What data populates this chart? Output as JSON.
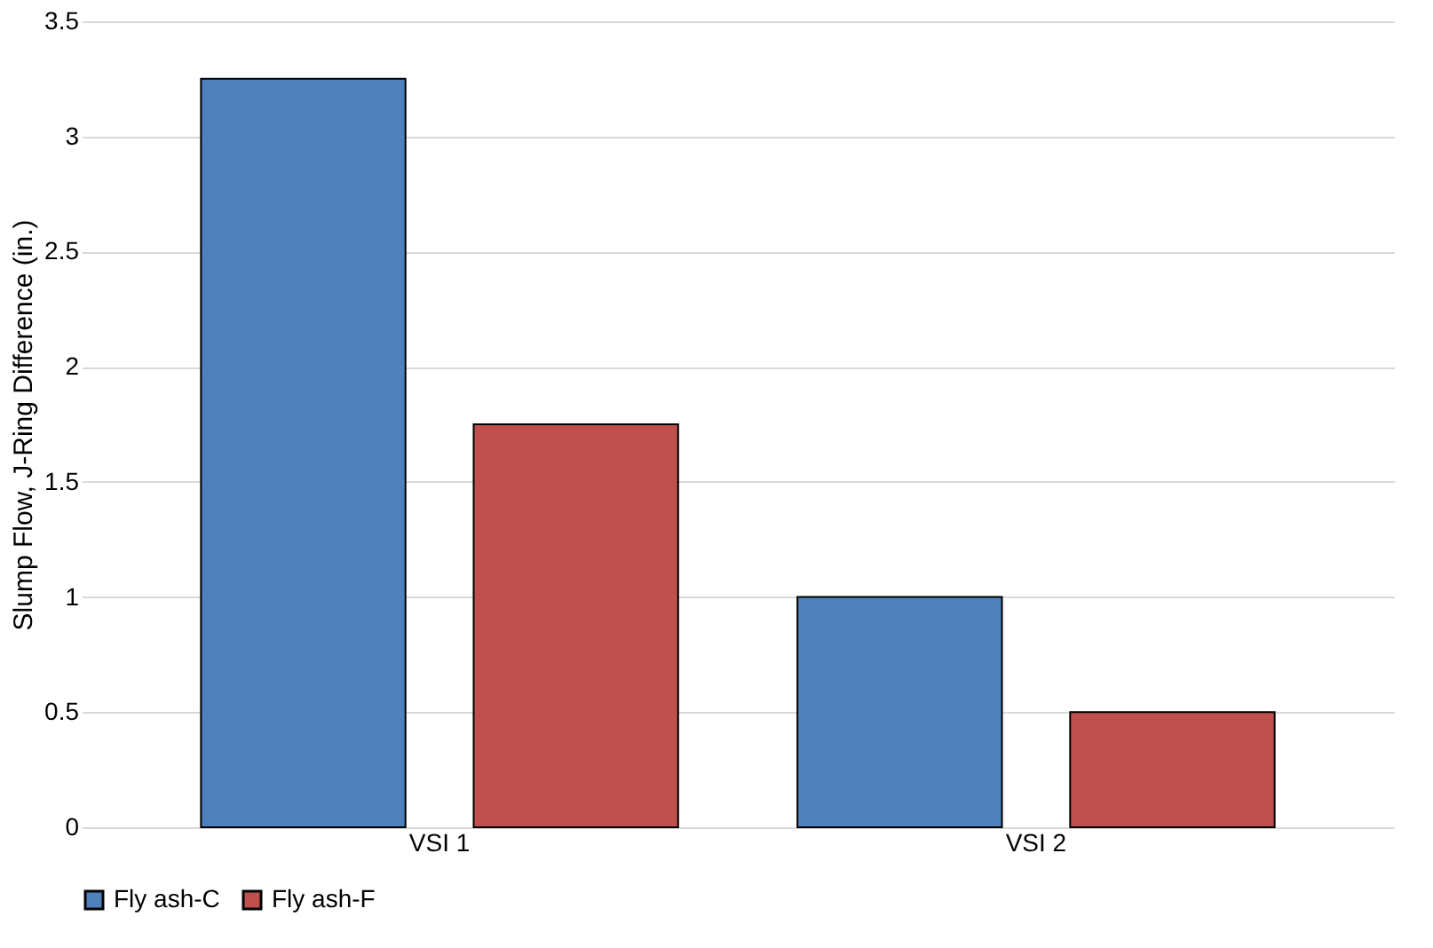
{
  "chart_data": {
    "type": "bar",
    "ylabel": "Slump Flow, J-Ring Difference (in.)",
    "categories": [
      "VSI 1",
      "VSI 2"
    ],
    "series": [
      {
        "name": "Fly ash-C",
        "color": "#4f81bd",
        "values": [
          3.25,
          1.0
        ]
      },
      {
        "name": "Fly ash-F",
        "color": "#c0504d",
        "values": [
          1.75,
          0.5
        ]
      }
    ],
    "ylim": [
      0,
      3.5
    ],
    "yticks": [
      0,
      0.5,
      1,
      1.5,
      2,
      2.5,
      3,
      3.5
    ],
    "grid": "y",
    "legend": "bottom"
  }
}
